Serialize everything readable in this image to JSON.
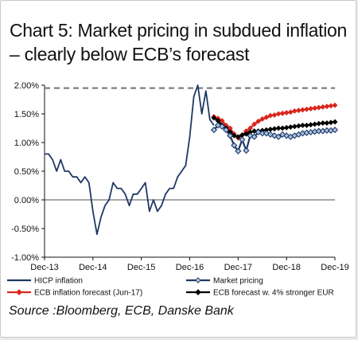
{
  "chart_data": {
    "type": "line",
    "title": "Chart 5: Market pricing in subdued inflation – clearly below ECB’s forecast",
    "source": "Source :Bloomberg, ECB, Danske Bank",
    "y_ticks": [
      "2.00%",
      "1.50%",
      "1.00%",
      "0.50%",
      "0.00%",
      "-0.50%",
      "-1.00%"
    ],
    "y_tick_values": [
      2.0,
      1.5,
      1.0,
      0.5,
      0.0,
      -0.5,
      -1.0
    ],
    "x_ticks": [
      "Dec-13",
      "Dec-14",
      "Dec-15",
      "Dec-16",
      "Dec-17",
      "Dec-18",
      "Dec-19"
    ],
    "x_tick_values": [
      "2013-12",
      "2014-12",
      "2015-12",
      "2016-12",
      "2017-12",
      "2018-12",
      "2019-12"
    ],
    "xlim": [
      "2013-12",
      "2019-12"
    ],
    "ylim": [
      -1.0,
      2.0
    ],
    "grid": false,
    "legend_position": "bottom",
    "reference_line": {
      "value": 1.95,
      "style": "dashed",
      "color": "#7f7f7f"
    },
    "series": [
      {
        "name": "HICP inflation",
        "color": "#1f3864",
        "marker": "none",
        "x": [
          "2013-12",
          "2014-01",
          "2014-02",
          "2014-03",
          "2014-04",
          "2014-05",
          "2014-06",
          "2014-07",
          "2014-08",
          "2014-09",
          "2014-10",
          "2014-11",
          "2014-12",
          "2015-01",
          "2015-02",
          "2015-03",
          "2015-04",
          "2015-05",
          "2015-06",
          "2015-07",
          "2015-08",
          "2015-09",
          "2015-10",
          "2015-11",
          "2015-12",
          "2016-01",
          "2016-02",
          "2016-03",
          "2016-04",
          "2016-05",
          "2016-06",
          "2016-07",
          "2016-08",
          "2016-09",
          "2016-10",
          "2016-11",
          "2016-12",
          "2017-01",
          "2017-02",
          "2017-03",
          "2017-04",
          "2017-05",
          "2017-06"
        ],
        "values": [
          0.8,
          0.8,
          0.7,
          0.5,
          0.7,
          0.5,
          0.5,
          0.4,
          0.4,
          0.3,
          0.4,
          0.3,
          -0.2,
          -0.6,
          -0.3,
          -0.1,
          0.0,
          0.3,
          0.2,
          0.2,
          0.1,
          -0.1,
          0.1,
          0.1,
          0.2,
          0.3,
          -0.2,
          0.0,
          -0.2,
          -0.1,
          0.1,
          0.2,
          0.2,
          0.4,
          0.5,
          0.6,
          1.1,
          1.8,
          2.0,
          1.5,
          1.9,
          1.4,
          1.3
        ]
      },
      {
        "name": "Market pricing",
        "color": "#1f3864",
        "marker": "diamond",
        "marker_fill": "#a9c4df",
        "x": [
          "2017-06",
          "2017-07",
          "2017-08",
          "2017-09",
          "2017-10",
          "2017-11",
          "2017-12",
          "2018-01",
          "2018-02",
          "2018-03",
          "2018-04",
          "2018-05",
          "2018-06",
          "2018-07",
          "2018-08",
          "2018-09",
          "2018-10",
          "2018-11",
          "2018-12",
          "2019-01",
          "2019-02",
          "2019-03",
          "2019-04",
          "2019-05",
          "2019-06",
          "2019-07",
          "2019-08",
          "2019-09",
          "2019-10",
          "2019-11",
          "2019-12"
        ],
        "values": [
          1.22,
          1.3,
          1.28,
          1.22,
          1.12,
          0.95,
          0.85,
          1.05,
          0.86,
          1.12,
          1.1,
          1.18,
          1.16,
          1.16,
          1.14,
          1.12,
          1.1,
          1.14,
          1.12,
          1.1,
          1.12,
          1.14,
          1.16,
          1.17,
          1.18,
          1.19,
          1.2,
          1.2,
          1.21,
          1.21,
          1.22
        ]
      },
      {
        "name": "ECB inflation forecast (Jun-17)",
        "color": "#d9261c",
        "marker": "diamond",
        "marker_fill": "#d9261c",
        "x": [
          "2017-06",
          "2017-07",
          "2017-08",
          "2017-09",
          "2017-10",
          "2017-11",
          "2017-12",
          "2018-01",
          "2018-02",
          "2018-03",
          "2018-04",
          "2018-05",
          "2018-06",
          "2018-07",
          "2018-08",
          "2018-09",
          "2018-10",
          "2018-11",
          "2018-12",
          "2019-01",
          "2019-02",
          "2019-03",
          "2019-04",
          "2019-05",
          "2019-06",
          "2019-07",
          "2019-08",
          "2019-09",
          "2019-10",
          "2019-11",
          "2019-12"
        ],
        "values": [
          1.45,
          1.42,
          1.38,
          1.3,
          1.25,
          1.15,
          1.08,
          1.13,
          1.2,
          1.25,
          1.32,
          1.37,
          1.41,
          1.44,
          1.47,
          1.48,
          1.5,
          1.51,
          1.52,
          1.53,
          1.55,
          1.56,
          1.57,
          1.58,
          1.59,
          1.6,
          1.61,
          1.62,
          1.63,
          1.64,
          1.65
        ]
      },
      {
        "name": "ECB forecast w. 4% stronger EUR",
        "color": "#000000",
        "marker": "diamond",
        "marker_fill": "#000000",
        "x": [
          "2017-06",
          "2017-07",
          "2017-08",
          "2017-09",
          "2017-10",
          "2017-11",
          "2017-12",
          "2018-01",
          "2018-02",
          "2018-03",
          "2018-04",
          "2018-05",
          "2018-06",
          "2018-07",
          "2018-08",
          "2018-09",
          "2018-10",
          "2018-11",
          "2018-12",
          "2019-01",
          "2019-02",
          "2019-03",
          "2019-04",
          "2019-05",
          "2019-06",
          "2019-07",
          "2019-08",
          "2019-09",
          "2019-10",
          "2019-11",
          "2019-12"
        ],
        "values": [
          1.43,
          1.38,
          1.3,
          1.25,
          1.18,
          1.12,
          1.1,
          1.13,
          1.15,
          1.18,
          1.2,
          1.2,
          1.21,
          1.22,
          1.23,
          1.24,
          1.25,
          1.25,
          1.26,
          1.27,
          1.28,
          1.29,
          1.3,
          1.3,
          1.31,
          1.32,
          1.33,
          1.34,
          1.34,
          1.35,
          1.36
        ]
      }
    ]
  }
}
